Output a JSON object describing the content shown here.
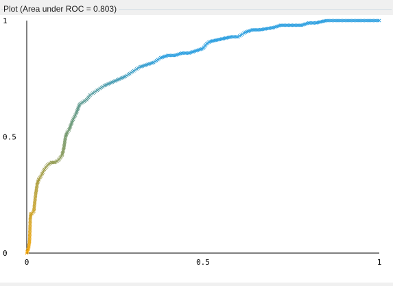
{
  "window": {
    "title": "Plot (Area under ROC = 0.803)"
  },
  "colors": {
    "low_threshold": "#f5a70a",
    "mid_threshold": "#7a9a6a",
    "high_threshold": "#2c9fe0",
    "axis": "#000000",
    "background": "#ffffff"
  },
  "chart_data": {
    "type": "line",
    "title": "",
    "xlabel": "",
    "ylabel": "",
    "xlim": [
      0,
      1
    ],
    "ylim": [
      0,
      1
    ],
    "x_ticks": [
      {
        "value": 0,
        "label": "0"
      },
      {
        "value": 0.5,
        "label": "0.5"
      },
      {
        "value": 1,
        "label": "1"
      }
    ],
    "y_ticks": [
      {
        "value": 0,
        "label": "0"
      },
      {
        "value": 0.5,
        "label": "0.5"
      },
      {
        "value": 1,
        "label": "1"
      }
    ],
    "grid": false,
    "legend": "none",
    "marker": "x",
    "series": [
      {
        "x": [
          0.0,
          0.005,
          0.008,
          0.01,
          0.012,
          0.015,
          0.02,
          0.025,
          0.03,
          0.035,
          0.04,
          0.05,
          0.06,
          0.07,
          0.08,
          0.09,
          0.1,
          0.105,
          0.11,
          0.115,
          0.12,
          0.13,
          0.14,
          0.15,
          0.16,
          0.17,
          0.18,
          0.2,
          0.22,
          0.25,
          0.28,
          0.3,
          0.32,
          0.34,
          0.36,
          0.38,
          0.4,
          0.42,
          0.44,
          0.46,
          0.48,
          0.5,
          0.51,
          0.52,
          0.55,
          0.58,
          0.6,
          0.62,
          0.64,
          0.66,
          0.7,
          0.72,
          0.75,
          0.78,
          0.8,
          0.82,
          0.85,
          0.9,
          0.95,
          1.0
        ],
        "y": [
          0.0,
          0.02,
          0.05,
          0.15,
          0.17,
          0.17,
          0.18,
          0.25,
          0.3,
          0.32,
          0.33,
          0.36,
          0.38,
          0.39,
          0.39,
          0.4,
          0.42,
          0.45,
          0.5,
          0.52,
          0.53,
          0.57,
          0.6,
          0.64,
          0.65,
          0.66,
          0.68,
          0.7,
          0.72,
          0.74,
          0.76,
          0.78,
          0.8,
          0.81,
          0.82,
          0.84,
          0.85,
          0.85,
          0.86,
          0.86,
          0.87,
          0.88,
          0.9,
          0.91,
          0.92,
          0.93,
          0.93,
          0.95,
          0.96,
          0.96,
          0.97,
          0.98,
          0.98,
          0.98,
          0.99,
          0.99,
          1.0,
          1.0,
          1.0,
          1.0
        ]
      }
    ]
  }
}
